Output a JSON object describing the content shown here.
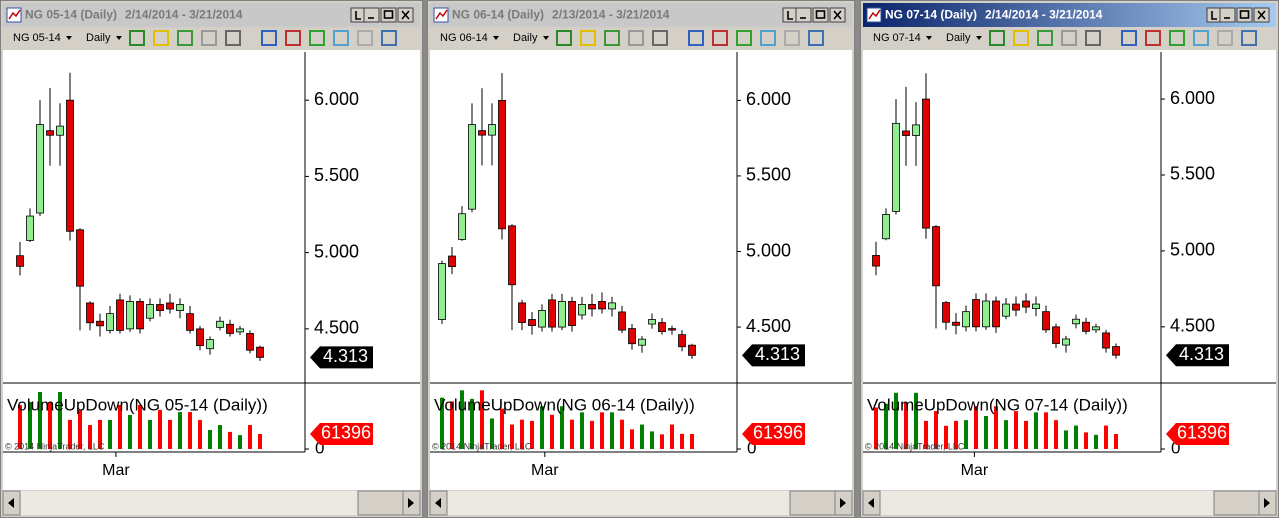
{
  "windows": [
    {
      "title": "NG 05-14 (Daily)",
      "date_range": "2/14/2014 - 3/21/2014",
      "instrument": "NG 05-14",
      "period": "Daily",
      "chart": {
        "type": "candlestick",
        "ylim": [
          4.145,
          6.316
        ],
        "yticks": [
          {
            "value": 6,
            "label": "6.000"
          },
          {
            "value": 5.5,
            "label": "5.500"
          },
          {
            "value": 5,
            "label": "5.000"
          },
          {
            "value": 4.5,
            "label": "4.500"
          }
        ],
        "open": [
          4.98,
          5.08,
          5.26,
          5.8,
          5.77,
          6.0,
          5.15,
          4.67,
          4.55,
          4.49,
          4.69,
          4.5,
          4.68,
          4.57,
          4.66,
          4.67,
          4.62,
          4.6,
          4.5,
          4.37,
          4.51,
          4.53,
          4.48,
          4.47,
          4.38
        ],
        "high": [
          5.07,
          5.29,
          6.0,
          6.08,
          5.98,
          6.18,
          5.16,
          4.68,
          4.6,
          4.65,
          4.73,
          4.72,
          4.7,
          4.7,
          4.7,
          4.73,
          4.7,
          4.65,
          4.52,
          4.45,
          4.58,
          4.56,
          4.52,
          4.49,
          4.39
        ],
        "low": [
          4.85,
          5.07,
          5.24,
          5.57,
          5.57,
          5.08,
          4.49,
          4.49,
          4.45,
          4.47,
          4.47,
          4.48,
          4.47,
          4.55,
          4.58,
          4.6,
          4.57,
          4.47,
          4.36,
          4.33,
          4.49,
          4.45,
          4.46,
          4.34,
          4.29
        ],
        "close": [
          4.91,
          5.24,
          5.84,
          5.77,
          5.83,
          5.14,
          4.78,
          4.54,
          4.52,
          4.6,
          4.49,
          4.68,
          4.5,
          4.66,
          4.62,
          4.63,
          4.66,
          4.49,
          4.39,
          4.43,
          4.55,
          4.47,
          4.5,
          4.36,
          4.313
        ],
        "last_price": 4.313,
        "indicator_title": "VolumeUpDown(NG 05-14 (Daily))",
        "volume": [
          180000,
          192000,
          233000,
          192000,
          233000,
          119000,
          160000,
          98000,
          119000,
          119000,
          180000,
          139000,
          180000,
          119000,
          160000,
          119000,
          151000,
          151000,
          119000,
          78000,
          98000,
          70000,
          57000,
          98000,
          61396
        ],
        "volume_ylim": [
          0,
          270000
        ],
        "volume_ticks": [
          0
        ],
        "last_volume": 61396,
        "x_label": "Mar",
        "copyright": "© 2014 NinjaTrader, LLC"
      }
    },
    {
      "title": "NG 06-14 (Daily)",
      "date_range": "2/13/2014 - 3/21/2014",
      "instrument": "NG 06-14",
      "period": "Daily",
      "chart": {
        "type": "candlestick",
        "ylim": [
          4.13,
          6.32
        ],
        "yticks": [
          {
            "value": 6,
            "label": "6.000"
          },
          {
            "value": 5.5,
            "label": "5.500"
          },
          {
            "value": 5,
            "label": "5.000"
          },
          {
            "value": 4.5,
            "label": "4.500"
          }
        ],
        "open": [
          4.55,
          4.97,
          5.08,
          5.28,
          5.8,
          5.77,
          6.0,
          5.17,
          4.66,
          4.55,
          4.5,
          4.68,
          4.5,
          4.67,
          4.58,
          4.65,
          4.67,
          4.62,
          4.6,
          4.49,
          4.38,
          4.52,
          4.53,
          4.49,
          4.45,
          4.38
        ],
        "high": [
          4.94,
          5.03,
          5.3,
          5.98,
          6.08,
          5.98,
          6.18,
          5.18,
          4.68,
          4.6,
          4.65,
          4.72,
          4.72,
          4.7,
          4.7,
          4.72,
          4.73,
          4.7,
          4.64,
          4.52,
          4.44,
          4.59,
          4.56,
          4.51,
          4.48,
          4.39
        ],
        "low": [
          4.52,
          4.85,
          5.07,
          5.26,
          5.57,
          5.57,
          5.08,
          4.48,
          4.48,
          4.45,
          4.47,
          4.47,
          4.48,
          4.47,
          4.55,
          4.57,
          4.59,
          4.57,
          4.46,
          4.35,
          4.33,
          4.49,
          4.45,
          4.45,
          4.34,
          4.29
        ],
        "close": [
          4.92,
          4.9,
          5.25,
          5.84,
          5.77,
          5.84,
          5.15,
          4.78,
          4.53,
          4.51,
          4.61,
          4.5,
          4.67,
          4.51,
          4.65,
          4.62,
          4.62,
          4.66,
          4.48,
          4.39,
          4.42,
          4.55,
          4.47,
          4.48,
          4.37,
          4.313
        ],
        "last_price": 4.313,
        "indicator_title": "VolumeUpDown(NG 06-14 (Daily))",
        "volume": [
          210000,
          195000,
          240000,
          205000,
          240000,
          125000,
          165000,
          100000,
          120000,
          115000,
          175000,
          140000,
          175000,
          120000,
          150000,
          115000,
          150000,
          150000,
          120000,
          80000,
          100000,
          72000,
          60000,
          100000,
          62000,
          61396
        ],
        "volume_ylim": [
          0,
          270000
        ],
        "volume_ticks": [
          0
        ],
        "last_volume": 61396,
        "x_label": "Mar",
        "copyright": "© 2014 NinjaTrader, LLC"
      }
    },
    {
      "title": "NG 07-14 (Daily)",
      "date_range": "2/14/2014 - 3/21/2014",
      "instrument": "NG 07-14",
      "period": "Daily",
      "chart": {
        "type": "candlestick",
        "ylim": [
          4.13,
          6.31
        ],
        "yticks": [
          {
            "value": 6,
            "label": "6.000"
          },
          {
            "value": 5.5,
            "label": "5.500"
          },
          {
            "value": 5,
            "label": "5.000"
          },
          {
            "value": 4.5,
            "label": "4.500"
          }
        ],
        "open": [
          4.97,
          5.08,
          5.26,
          5.79,
          5.76,
          6.0,
          5.16,
          4.66,
          4.53,
          4.5,
          4.68,
          4.5,
          4.67,
          4.57,
          4.65,
          4.67,
          4.62,
          4.6,
          4.5,
          4.38,
          4.52,
          4.53,
          4.48,
          4.46,
          4.37
        ],
        "high": [
          5.06,
          5.28,
          6.0,
          6.08,
          5.98,
          6.17,
          5.17,
          4.67,
          4.59,
          4.64,
          4.72,
          4.72,
          4.7,
          4.69,
          4.7,
          4.72,
          4.7,
          4.64,
          4.52,
          4.44,
          4.58,
          4.56,
          4.52,
          4.48,
          4.39
        ],
        "low": [
          4.84,
          5.07,
          5.24,
          5.56,
          5.56,
          5.08,
          4.49,
          4.48,
          4.45,
          4.47,
          4.47,
          4.48,
          4.46,
          4.55,
          4.57,
          4.59,
          4.57,
          4.46,
          4.36,
          4.33,
          4.49,
          4.45,
          4.46,
          4.33,
          4.29
        ],
        "close": [
          4.9,
          5.24,
          5.84,
          5.76,
          5.83,
          5.15,
          4.77,
          4.53,
          4.51,
          4.6,
          4.5,
          4.67,
          4.5,
          4.65,
          4.61,
          4.63,
          4.65,
          4.48,
          4.39,
          4.42,
          4.55,
          4.47,
          4.5,
          4.36,
          4.313
        ],
        "last_price": 4.313,
        "indicator_title": "VolumeUpDown(NG 07-14 (Daily))",
        "volume": [
          170000,
          185000,
          230000,
          190000,
          230000,
          115000,
          155000,
          95000,
          115000,
          118000,
          175000,
          135000,
          175000,
          118000,
          155000,
          115000,
          150000,
          150000,
          118000,
          76000,
          96000,
          68000,
          58000,
          96000,
          61396
        ],
        "volume_ylim": [
          0,
          270000
        ],
        "volume_ticks": [
          0
        ],
        "last_volume": 61396,
        "x_label": "Mar",
        "copyright": "© 2014 NinjaTrader, LLC"
      }
    }
  ]
}
